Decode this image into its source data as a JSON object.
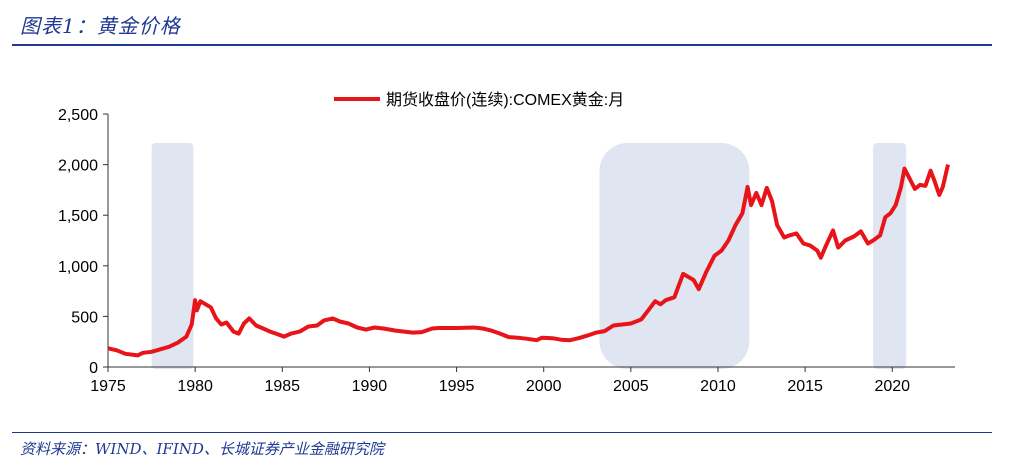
{
  "header": {
    "figure_title": "图表1：黄金价格"
  },
  "footer": {
    "source": "资料来源：WIND、IFIND、长城证券产业金融研究院"
  },
  "colors": {
    "line": "#e8141a",
    "shade": "#dfe5f1",
    "accent": "#1f3a93"
  },
  "chart_data": {
    "type": "line",
    "series": [
      {
        "name": "期货收盘价(连续):COMEX黄金:月",
        "x": [
          1975,
          1975.5,
          1976,
          1976.7,
          1977,
          1977.5,
          1978,
          1978.5,
          1979,
          1979.5,
          1979.8,
          1980.0,
          1980.1,
          1980.3,
          1980.6,
          1980.9,
          1981.2,
          1981.5,
          1981.8,
          1982.2,
          1982.5,
          1982.8,
          1983.1,
          1983.5,
          1983.9,
          1984.3,
          1984.8,
          1985.1,
          1985.5,
          1986,
          1986.5,
          1987,
          1987.4,
          1987.9,
          1988.3,
          1988.8,
          1989.3,
          1989.8,
          1990.3,
          1990.8,
          1991.5,
          1992,
          1992.5,
          1993,
          1993.6,
          1994,
          1995,
          1996,
          1996.5,
          1997,
          1997.5,
          1998,
          1998.5,
          1999,
          1999.6,
          1999.9,
          2000.5,
          2001,
          2001.5,
          2002,
          2002.5,
          2003,
          2003.5,
          2004,
          2004.5,
          2005,
          2005.6,
          2006.0,
          2006.4,
          2006.7,
          2007,
          2007.5,
          2008,
          2008.2,
          2008.6,
          2008.9,
          2009.3,
          2009.8,
          2010.2,
          2010.6,
          2011.0,
          2011.4,
          2011.7,
          2011.9,
          2012.2,
          2012.5,
          2012.8,
          2013.1,
          2013.4,
          2013.8,
          2014.1,
          2014.5,
          2014.9,
          2015.3,
          2015.7,
          2015.9,
          2016.2,
          2016.6,
          2016.9,
          2017.3,
          2017.8,
          2018.2,
          2018.6,
          2018.9,
          2019.3,
          2019.6,
          2019.9,
          2020.2,
          2020.5,
          2020.7,
          2021.0,
          2021.3,
          2021.6,
          2021.9,
          2022.2,
          2022.4,
          2022.7,
          2022.9,
          2023.2
        ],
        "values": [
          185,
          165,
          130,
          115,
          140,
          150,
          175,
          200,
          240,
          300,
          420,
          660,
          560,
          650,
          620,
          590,
          480,
          420,
          440,
          350,
          330,
          430,
          480,
          410,
          380,
          350,
          320,
          300,
          330,
          350,
          400,
          410,
          460,
          480,
          450,
          430,
          390,
          370,
          390,
          380,
          360,
          350,
          340,
          345,
          380,
          385,
          385,
          390,
          380,
          360,
          330,
          295,
          290,
          280,
          265,
          290,
          285,
          270,
          265,
          285,
          310,
          340,
          355,
          410,
          420,
          430,
          470,
          560,
          650,
          620,
          660,
          690,
          920,
          900,
          860,
          770,
          930,
          1100,
          1150,
          1250,
          1400,
          1520,
          1780,
          1600,
          1720,
          1600,
          1770,
          1640,
          1400,
          1280,
          1300,
          1320,
          1220,
          1200,
          1150,
          1080,
          1200,
          1350,
          1180,
          1250,
          1290,
          1340,
          1220,
          1250,
          1300,
          1480,
          1520,
          1600,
          1780,
          1960,
          1860,
          1760,
          1800,
          1790,
          1940,
          1850,
          1700,
          1780,
          2000
        ]
      }
    ],
    "xlim": [
      1975,
      2023.6
    ],
    "ylim": [
      0,
      2500
    ],
    "x_ticks": [
      "1975",
      "1980",
      "1985",
      "1990",
      "1995",
      "2000",
      "2005",
      "2010",
      "2015",
      "2020"
    ],
    "y_ticks": [
      "0",
      "500",
      "1,000",
      "1,500",
      "2,000",
      "2,500"
    ],
    "shaded_periods": [
      [
        1977.5,
        1979.9
      ],
      [
        2003.2,
        2011.8
      ],
      [
        2018.9,
        2020.8
      ]
    ],
    "legend_position": "top-center",
    "grid": false
  }
}
